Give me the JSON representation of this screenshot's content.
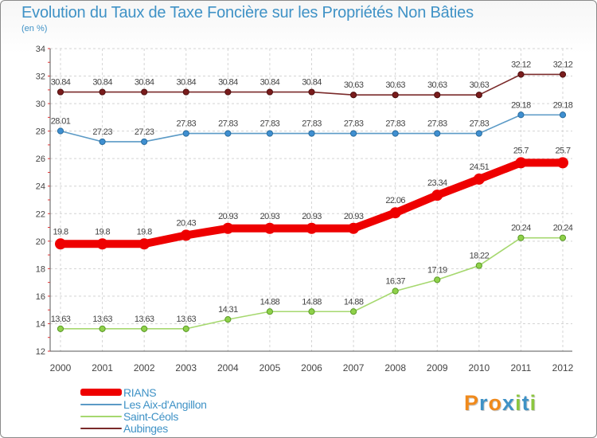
{
  "chart_data": {
    "type": "line",
    "title": "Evolution du Taux de Taxe Foncière sur les Propriétés Non Bâties",
    "subtitle": "(en %)",
    "x": [
      "2000",
      "2001",
      "2002",
      "2003",
      "2004",
      "2005",
      "2006",
      "2007",
      "2008",
      "2009",
      "2010",
      "2011",
      "2012"
    ],
    "ylim": [
      12,
      34
    ],
    "yticks": [
      12,
      14,
      16,
      18,
      20,
      22,
      24,
      26,
      28,
      30,
      32,
      34
    ],
    "grid": true,
    "legend_position": "bottom-left",
    "series": [
      {
        "name": "RIANS",
        "color": "#ee0000",
        "values": [
          19.8,
          19.8,
          19.8,
          20.43,
          20.93,
          20.93,
          20.93,
          20.93,
          22.06,
          23.34,
          24.51,
          25.7,
          25.7
        ]
      },
      {
        "name": "Les Aix-d'Angillon",
        "color": "#5b9ac6",
        "values": [
          28.01,
          27.23,
          27.23,
          27.83,
          27.83,
          27.83,
          27.83,
          27.83,
          27.83,
          27.83,
          27.83,
          29.18,
          29.18
        ]
      },
      {
        "name": "Saint-Céols",
        "color": "#a6d86f",
        "values": [
          13.63,
          13.63,
          13.63,
          13.63,
          14.31,
          14.88,
          14.88,
          14.88,
          16.37,
          17.19,
          18.22,
          20.24,
          20.24
        ]
      },
      {
        "name": "Aubinges",
        "color": "#7a2a2a",
        "values": [
          30.84,
          30.84,
          30.84,
          30.84,
          30.84,
          30.84,
          30.84,
          30.63,
          30.63,
          30.63,
          30.63,
          32.12,
          32.12
        ]
      }
    ]
  },
  "logo": {
    "text": "Proxiti",
    "colors": [
      "#f08a1c",
      "#3f92c6",
      "#f08a1c",
      "#3f92c6",
      "#8cc63f",
      "#3f92c6",
      "#8cc63f"
    ]
  }
}
